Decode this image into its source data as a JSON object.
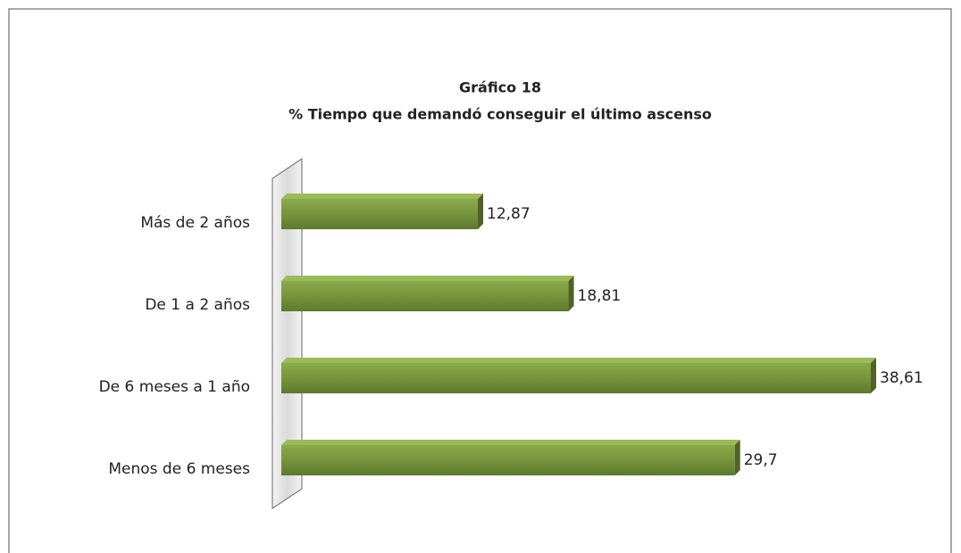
{
  "chart_data": {
    "type": "bar",
    "orientation": "horizontal",
    "title": "Gráfico 18",
    "subtitle": "% Tiempo que demandó conseguir el último ascenso",
    "categories": [
      "Más de 2 años",
      "De 1 a 2 años",
      "De 6 meses a 1 año",
      "Menos de 6 meses"
    ],
    "values": [
      12.87,
      18.81,
      38.61,
      29.7
    ],
    "value_labels": [
      "12,87",
      "18,81",
      "38,61",
      "29,7"
    ],
    "color": "#77933c"
  }
}
